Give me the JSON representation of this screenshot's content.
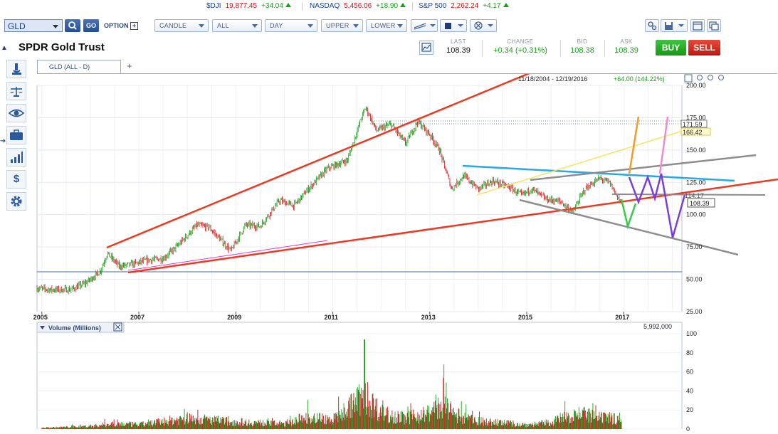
{
  "ticker": [
    {
      "name": "$DJI",
      "value": "19,877.45",
      "change": "+34.04"
    },
    {
      "name": "NASDAQ",
      "value": "5,456.06",
      "change": "+18.90"
    },
    {
      "name": "S&P 500",
      "value": "2,262.24",
      "change": "+4.17"
    }
  ],
  "toolbar": {
    "symbol": "GLD",
    "go_label": "GO",
    "option_label": "OPTION",
    "chart_type": "CANDLE",
    "range": "ALL",
    "period": "DAY",
    "upper": "UPPER",
    "lower": "LOWER"
  },
  "header": {
    "title": "SPDR Gold Trust",
    "quote": {
      "last_label": "LAST",
      "last": "108.39",
      "change_label": "CHANGE",
      "change": "+0.34 (+0.31%)",
      "bid_label": "BID",
      "bid": "108.38",
      "ask_label": "ASK",
      "ask": "108.39"
    },
    "buy_label": "BUY",
    "sell_label": "SELL"
  },
  "tab": {
    "label": "GLD (ALL - D)",
    "add": "+"
  },
  "left_tools": [
    "microscope-icon",
    "scale-icon",
    "eye-icon",
    "briefcase-icon",
    "bar-chart-icon",
    "dollar-icon",
    "gear-icon"
  ],
  "colors": {
    "up": "#1a9e1a",
    "down": "#c9141b",
    "brand": "#1b3f8f"
  },
  "chart_data": [
    {
      "type": "line",
      "title": "GLD (ALL - D)",
      "range_text": "11/18/2004 - 12/19/2016",
      "range_change": "+64.00 (144.22%)",
      "x_ticks": [
        "2005",
        "2007",
        "2009",
        "2011",
        "2013",
        "2015",
        "2017"
      ],
      "y_ticks": [
        "200.00",
        "175.00",
        "150.00",
        "125.00",
        "100.00",
        "75.00",
        "50.00",
        "25.00"
      ],
      "ylim": [
        25,
        200
      ],
      "xlim": [
        2004.9,
        2018.2
      ],
      "grid": true,
      "price_labels": [
        "171.59",
        "166.42",
        "114.17",
        "108.39"
      ],
      "series": [
        {
          "x": [
            2004.9,
            2005.2,
            2005.6,
            2005.9,
            2006.2,
            2006.35,
            2006.6,
            2006.9,
            2007.2,
            2007.5,
            2007.8,
            2008.2,
            2008.45,
            2008.7,
            2008.9,
            2009.2,
            2009.5,
            2009.9,
            2010.2,
            2010.5,
            2010.9,
            2011.3,
            2011.6,
            2011.68,
            2011.9,
            2012.2,
            2012.5,
            2012.75,
            2013.0,
            2013.2,
            2013.45,
            2013.7,
            2014.0,
            2014.3,
            2014.6,
            2014.9,
            2015.1,
            2015.4,
            2015.7,
            2015.95,
            2016.2,
            2016.5,
            2016.7,
            2016.96
          ],
          "values": [
            43,
            42,
            42,
            47,
            56,
            70,
            60,
            62,
            65,
            66,
            76,
            92,
            90,
            80,
            72,
            92,
            91,
            111,
            107,
            120,
            136,
            142,
            176,
            183,
            165,
            170,
            155,
            172,
            162,
            150,
            120,
            130,
            120,
            126,
            122,
            115,
            120,
            112,
            110,
            102,
            120,
            128,
            125,
            108.39
          ]
        }
      ]
    },
    {
      "type": "bar",
      "title": "Volume (Millions)",
      "last_volume": "5,992,000",
      "y_ticks": [
        "100",
        "80",
        "60",
        "40",
        "20",
        "0"
      ],
      "ylim": [
        0,
        100
      ],
      "x": [
        2005,
        2006,
        2006.5,
        2007,
        2008,
        2008.5,
        2009,
        2010,
        2010.5,
        2011,
        2011.65,
        2012,
        2012.5,
        2013,
        2013.3,
        2013.5,
        2014,
        2015,
        2015.5,
        2016,
        2016.5
      ],
      "values": [
        3,
        8,
        15,
        12,
        30,
        25,
        20,
        15,
        35,
        25,
        94,
        45,
        30,
        45,
        70,
        40,
        22,
        12,
        18,
        45,
        30
      ]
    }
  ]
}
